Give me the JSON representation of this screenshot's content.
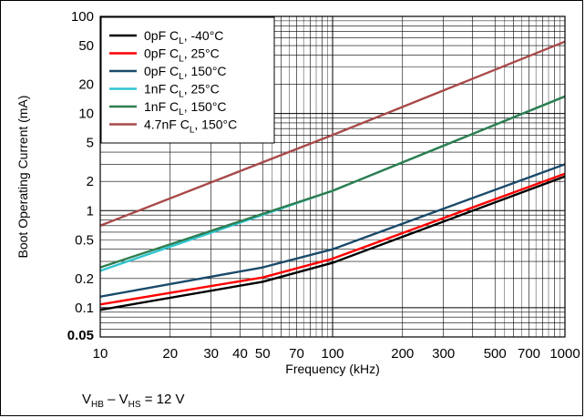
{
  "chart_data": {
    "type": "line",
    "xlabel": "Frequency (kHz)",
    "ylabel": "Boot Operating Current (mA)",
    "xscale": "log",
    "yscale": "log",
    "xlim": [
      10,
      1000
    ],
    "ylim": [
      0.05,
      100
    ],
    "grid": true,
    "legend_position": "top-left",
    "x_tick_labels": [
      "10",
      "20",
      "30",
      "40",
      "50",
      "70",
      "100",
      "200",
      "300",
      "500",
      "700",
      "1000"
    ],
    "y_tick_labels": [
      "0.05",
      "0.1",
      "0.2",
      "0.5",
      "1",
      "2",
      "5",
      "10",
      "20",
      "50",
      "100"
    ],
    "series": [
      {
        "name": "0pF C_L, -40°C",
        "main": "0pF C",
        "sub": "L",
        "rest": ", -40°C",
        "color": "#000000",
        "x": [
          10,
          50,
          100,
          1000
        ],
        "y": [
          0.095,
          0.185,
          0.29,
          2.25
        ]
      },
      {
        "name": "0pF C_L, 25°C",
        "main": "0pF C",
        "sub": "L",
        "rest": ", 25°C",
        "color": "#ff0000",
        "x": [
          10,
          50,
          100,
          1000
        ],
        "y": [
          0.108,
          0.205,
          0.32,
          2.4
        ]
      },
      {
        "name": "0pF C_L, 150°C",
        "main": "0pF C",
        "sub": "L",
        "rest": ", 150°C",
        "color": "#1a4a6a",
        "x": [
          10,
          50,
          100,
          1000
        ],
        "y": [
          0.13,
          0.26,
          0.4,
          3.0
        ]
      },
      {
        "name": "1nF C_L, 25°C",
        "main": "1nF C",
        "sub": "L",
        "rest": ", 25°C",
        "color": "#2ec4d0",
        "x": [
          10,
          100,
          1000
        ],
        "y": [
          0.24,
          1.6,
          15.0
        ]
      },
      {
        "name": "1nF C_L, 150°C",
        "main": "1nF C",
        "sub": "L",
        "rest": ", 150°C",
        "color": "#2e7d4f",
        "x": [
          10,
          100,
          1000
        ],
        "y": [
          0.26,
          1.6,
          15.0
        ]
      },
      {
        "name": "4.7nF C_L, 150°C",
        "main": "4.7nF C",
        "sub": "L",
        "rest": ", 150°C",
        "color": "#a84a4a",
        "x": [
          10,
          100,
          1000
        ],
        "y": [
          0.7,
          6.0,
          55.0
        ]
      }
    ]
  },
  "footnote": {
    "v1": "V",
    "v1_sub": "HB",
    "dash": " – ",
    "v2": "V",
    "v2_sub": "HS",
    "value": " = 12 V"
  }
}
